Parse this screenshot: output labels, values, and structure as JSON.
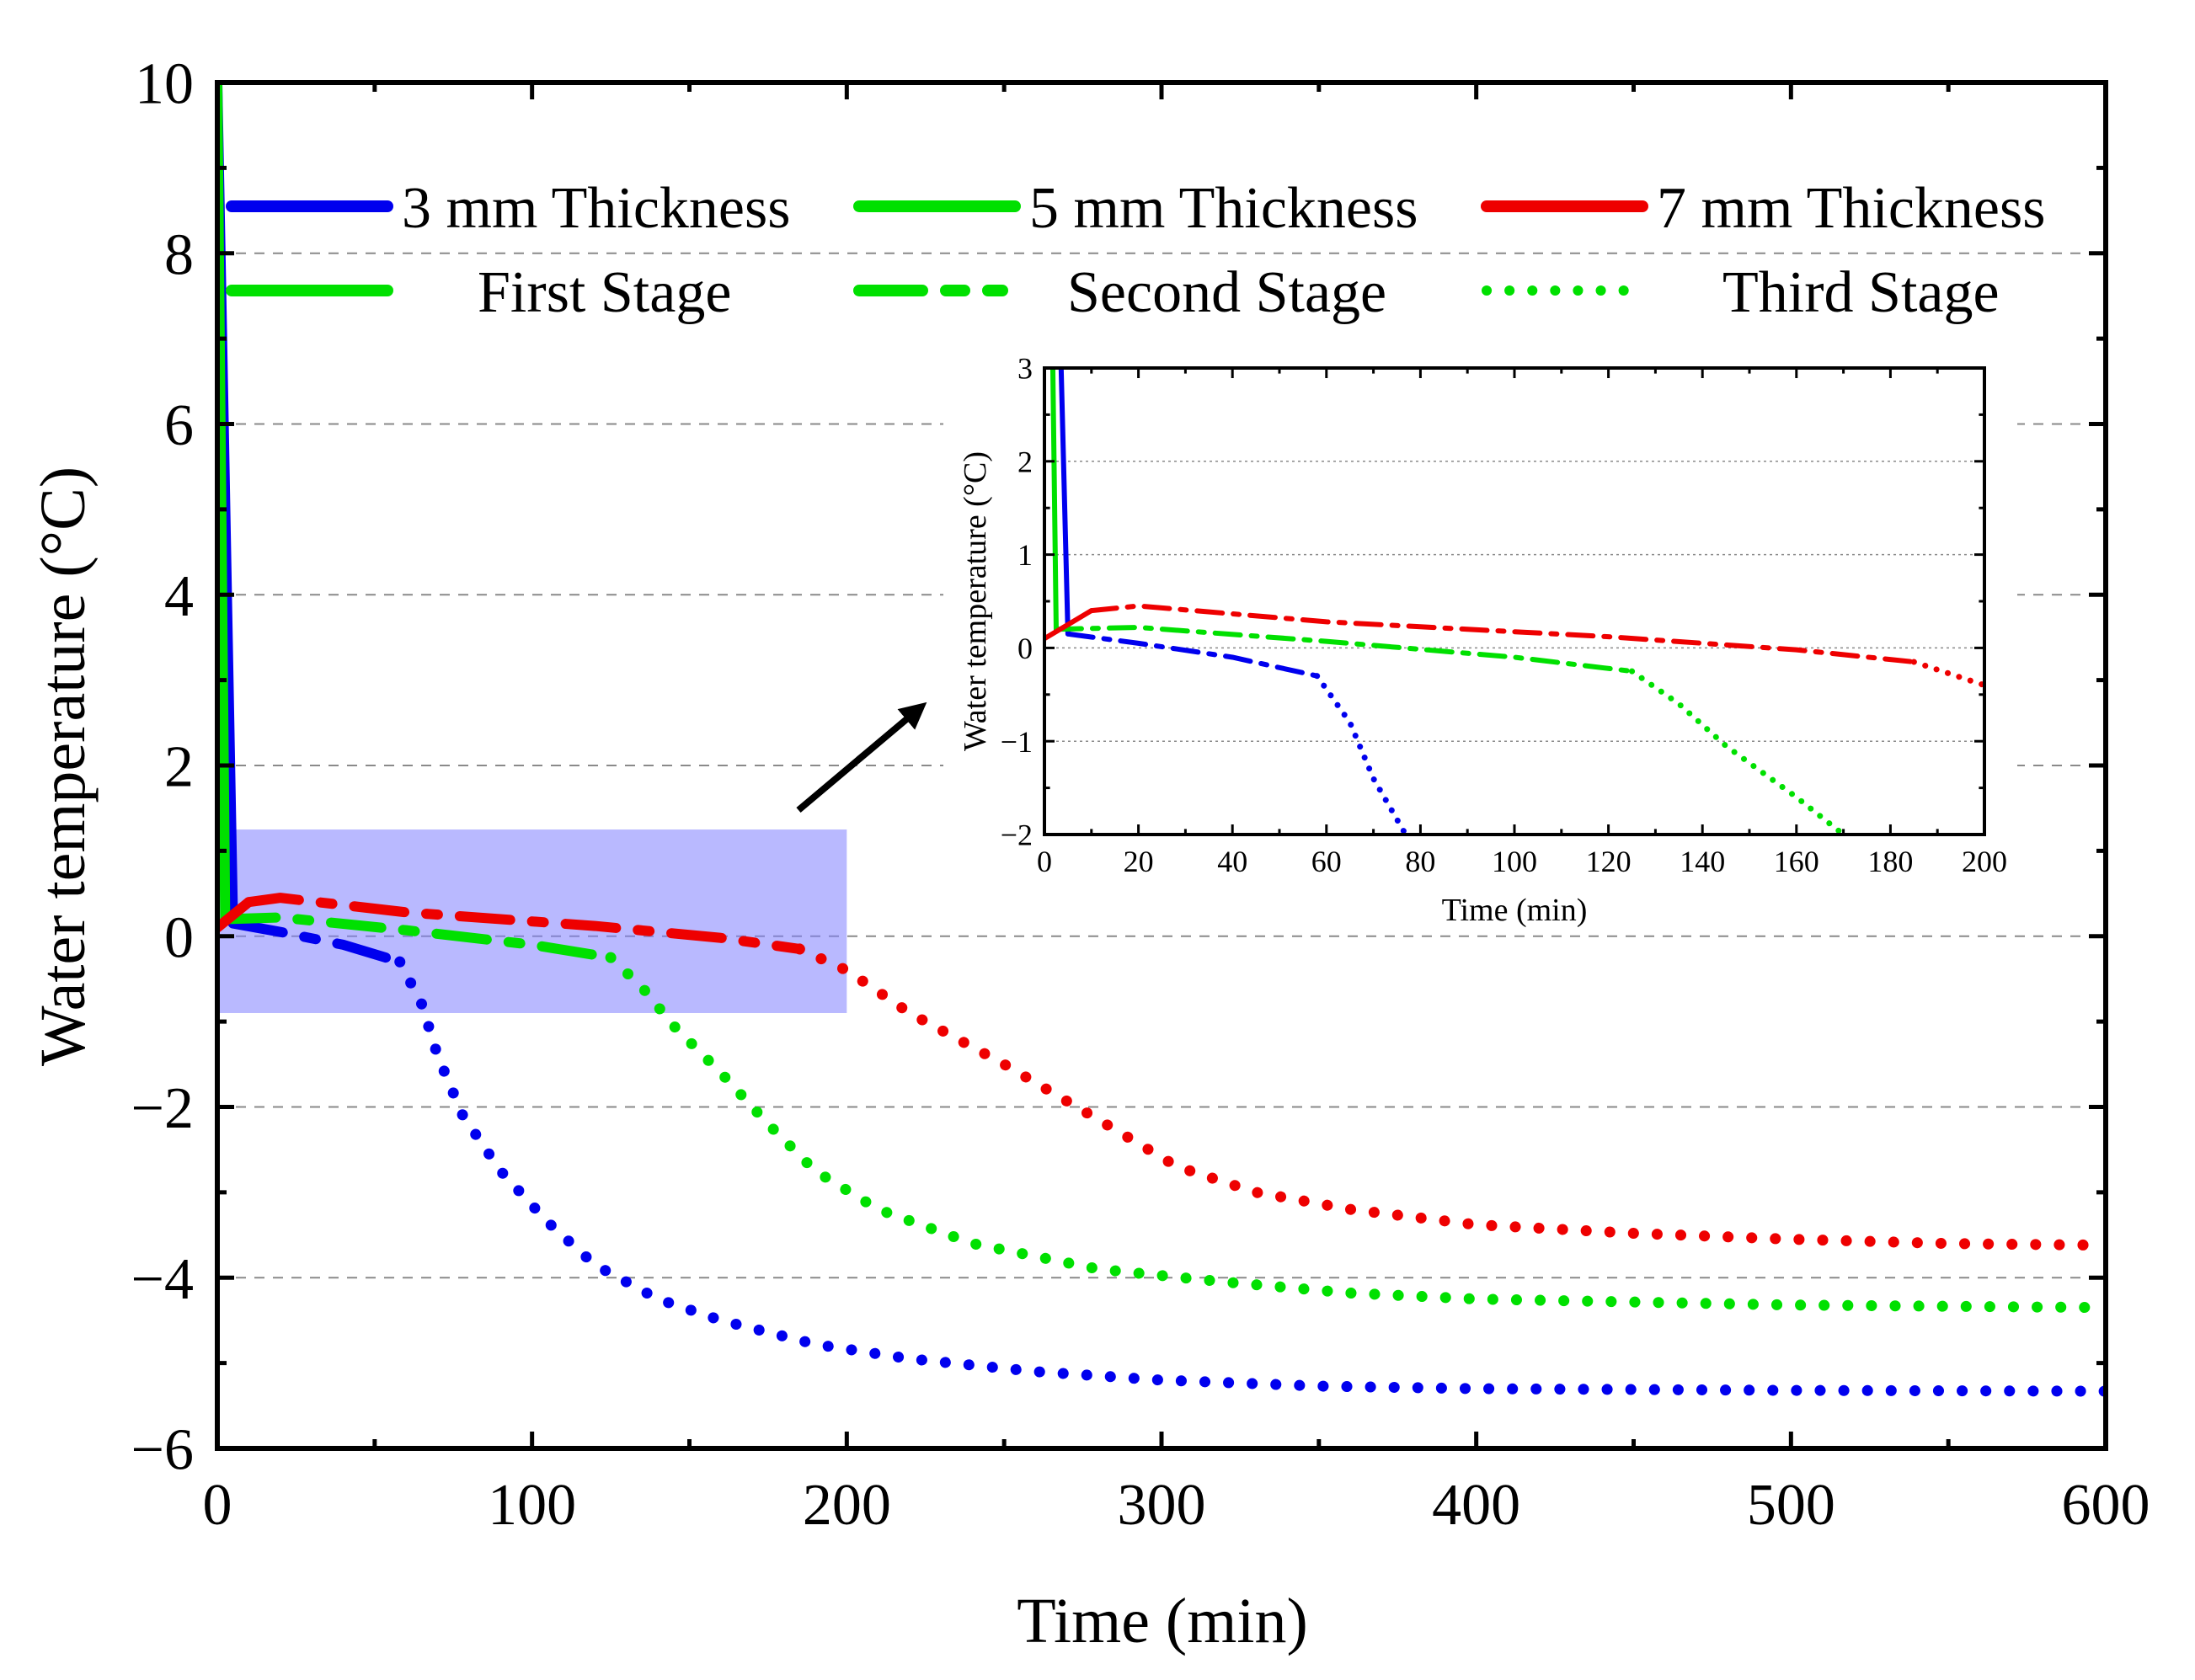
{
  "colors": {
    "thin": "#0000ee",
    "mid": "#00e000",
    "thick": "#ee0000",
    "zoom_box": "#8080ff",
    "overlap": "#b00040"
  },
  "chart_data": [
    {
      "id": "main",
      "type": "line",
      "title": "",
      "xlabel": "Time (min)",
      "ylabel": "Water temperature (°C)",
      "xlim": [
        0,
        600
      ],
      "ylim": [
        -6,
        10
      ],
      "xticks": [
        0,
        100,
        200,
        300,
        400,
        500,
        600
      ],
      "yticks": [
        -6,
        -4,
        -2,
        0,
        2,
        4,
        6,
        8,
        10
      ],
      "grid": "horizontal dashed",
      "legend": {
        "placement": "top",
        "entries": [
          {
            "label": "3 mm Thickness",
            "style": "solid",
            "color": "blue"
          },
          {
            "label": "5 mm Thickness",
            "style": "solid",
            "color": "green"
          },
          {
            "label": "7 mm Thickness",
            "style": "solid",
            "color": "red"
          },
          {
            "label": "First Stage",
            "style": "solid",
            "color": "green"
          },
          {
            "label": "Second Stage",
            "style": "dashdot",
            "color": "green"
          },
          {
            "label": "Third Stage",
            "style": "dotted",
            "color": "green"
          }
        ]
      },
      "zoom_region": {
        "x": [
          0,
          200
        ],
        "y": [
          -0.9,
          1.25
        ]
      },
      "series": [
        {
          "name": "3 mm Thickness",
          "color": "blue",
          "first_stage": [
            [
              0,
              10
            ],
            [
              5,
              0.15
            ]
          ],
          "second_stage": [
            [
              5,
              0.15
            ],
            [
              20,
              0.05
            ],
            [
              40,
              -0.1
            ],
            [
              58,
              -0.3
            ]
          ],
          "third_stage": [
            [
              58,
              -0.3
            ],
            [
              65,
              -0.8
            ],
            [
              70,
              -1.4
            ],
            [
              78,
              -2.1
            ],
            [
              90,
              -2.75
            ],
            [
              105,
              -3.35
            ],
            [
              120,
              -3.85
            ],
            [
              140,
              -4.25
            ],
            [
              160,
              -4.5
            ],
            [
              190,
              -4.78
            ],
            [
              220,
              -4.95
            ],
            [
              260,
              -5.1
            ],
            [
              300,
              -5.2
            ],
            [
              350,
              -5.27
            ],
            [
              400,
              -5.3
            ],
            [
              500,
              -5.32
            ],
            [
              600,
              -5.33
            ]
          ]
        },
        {
          "name": "5 mm Thickness",
          "color": "green",
          "first_stage": [
            [
              0,
              10
            ],
            [
              2.5,
              0.2
            ]
          ],
          "second_stage": [
            [
              2.5,
              0.2
            ],
            [
              20,
              0.22
            ],
            [
              60,
              0.07
            ],
            [
              100,
              -0.1
            ],
            [
              125,
              -0.25
            ]
          ],
          "third_stage": [
            [
              125,
              -0.25
            ],
            [
              135,
              -0.6
            ],
            [
              145,
              -1.05
            ],
            [
              160,
              -1.6
            ],
            [
              175,
              -2.2
            ],
            [
              190,
              -2.75
            ],
            [
              210,
              -3.2
            ],
            [
              240,
              -3.6
            ],
            [
              280,
              -3.9
            ],
            [
              320,
              -4.05
            ],
            [
              360,
              -4.18
            ],
            [
              400,
              -4.25
            ],
            [
              500,
              -4.32
            ],
            [
              600,
              -4.35
            ]
          ]
        },
        {
          "name": "7 mm Thickness",
          "color": "red",
          "first_stage": [
            [
              0,
              0.1
            ],
            [
              10,
              0.4
            ]
          ],
          "second_stage": [
            [
              10,
              0.4
            ],
            [
              20,
              0.45
            ],
            [
              60,
              0.28
            ],
            [
              120,
              0.12
            ],
            [
              160,
              -0.02
            ],
            [
              185,
              -0.15
            ]
          ],
          "third_stage": [
            [
              185,
              -0.15
            ],
            [
              200,
              -0.4
            ],
            [
              220,
              -0.9
            ],
            [
              250,
              -1.5
            ],
            [
              280,
              -2.15
            ],
            [
              305,
              -2.7
            ],
            [
              330,
              -3.0
            ],
            [
              360,
              -3.2
            ],
            [
              400,
              -3.38
            ],
            [
              450,
              -3.48
            ],
            [
              500,
              -3.55
            ],
            [
              550,
              -3.6
            ],
            [
              600,
              -3.62
            ]
          ]
        }
      ]
    },
    {
      "id": "inset",
      "type": "line",
      "title": "",
      "xlabel": "Time (min)",
      "ylabel": "Water temperature (°C)",
      "xlim": [
        0,
        200
      ],
      "ylim": [
        -2,
        3
      ],
      "xticks": [
        0,
        20,
        40,
        60,
        80,
        100,
        120,
        140,
        160,
        180,
        200
      ],
      "yticks": [
        -2,
        -1,
        0,
        1,
        2,
        3
      ],
      "grid": "horizontal dotted",
      "series_source": "main"
    }
  ]
}
